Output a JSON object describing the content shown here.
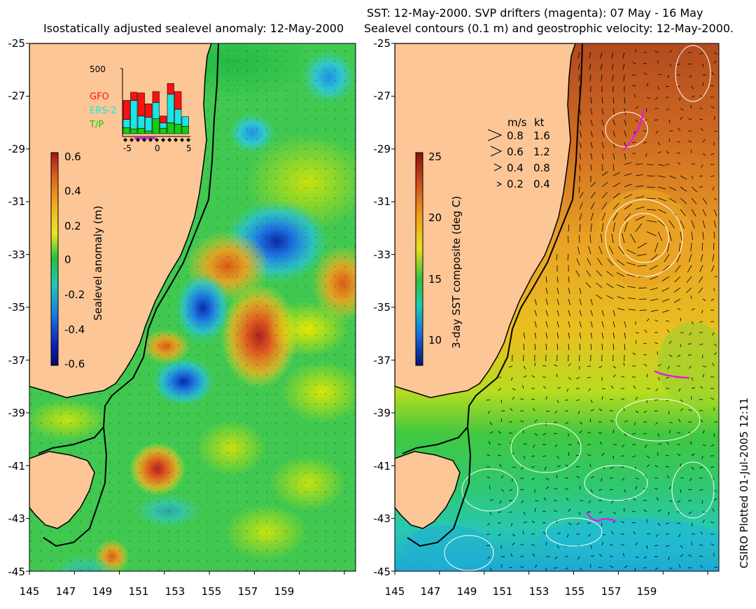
{
  "left_panel": {
    "title": "Isostatically adjusted sealevel anomaly: 12-May-2000",
    "colorbar": {
      "label": "Sealevel anomaly (m)",
      "ticks": [
        "0.6",
        "0.4",
        "0.2",
        "0",
        "-0.2",
        "-0.4",
        "-0.6"
      ],
      "range": [
        -0.6,
        0.6
      ]
    },
    "inset": {
      "ymax_label": "500",
      "legend": [
        {
          "name": "GFO",
          "color": "#ff1010"
        },
        {
          "name": "ERS-2",
          "color": "#19e6e6"
        },
        {
          "name": "T/P",
          "color": "#10d010"
        }
      ],
      "xticks": [
        "-5",
        "0",
        "5"
      ],
      "bars": [
        {
          "tp": 45,
          "ers": 60,
          "gfo": 140
        },
        {
          "tp": 35,
          "ers": 210,
          "gfo": 60
        },
        {
          "tp": 40,
          "ers": 90,
          "gfo": 170
        },
        {
          "tp": 20,
          "ers": 100,
          "gfo": 100
        },
        {
          "tp": 110,
          "ers": 120,
          "gfo": 80
        },
        {
          "tp": 40,
          "ers": 40,
          "gfo": 50
        },
        {
          "tp": 80,
          "ers": 210,
          "gfo": 80
        },
        {
          "tp": 70,
          "ers": 110,
          "gfo": 130
        },
        {
          "tp": 55,
          "ers": 70,
          "gfo": 0
        }
      ]
    },
    "lat_labels": [
      "-25",
      "-27",
      "-29",
      "-31",
      "-33",
      "-35",
      "-37",
      "-39",
      "-41",
      "-43",
      "-45"
    ],
    "lon_labels": [
      "145",
      "147",
      "149",
      "151",
      "153",
      "155",
      "157",
      "159"
    ]
  },
  "right_panel": {
    "title_line1": "SST: 12-May-2000. SVP drifters (magenta): 07 May - 16 May",
    "title_line2": "Sealevel contours (0.1 m) and geostrophic velocity: 12-May-2000.",
    "colorbar": {
      "label": "3-day SST composite (deg C)",
      "ticks": [
        "25",
        "20",
        "15",
        "10"
      ],
      "range": [
        8,
        25
      ]
    },
    "velocity_key": {
      "headers": [
        "m/s",
        "kt"
      ],
      "rows": [
        {
          "ms": "0.8",
          "kt": "1.6"
        },
        {
          "ms": "0.6",
          "kt": "1.2"
        },
        {
          "ms": "0.4",
          "kt": "0.8"
        },
        {
          "ms": "0.2",
          "kt": "0.4"
        }
      ]
    },
    "lat_labels": [
      "-25",
      "-27",
      "-29",
      "-31",
      "-33",
      "-35",
      "-37",
      "-39",
      "-41",
      "-43",
      "-45"
    ],
    "lon_labels": [
      "145",
      "147",
      "149",
      "151",
      "153",
      "155",
      "157",
      "159"
    ]
  },
  "credit": "CSIRO Plotted 01-Jul-2005 12:11",
  "colors": {
    "land": "#fcc696",
    "coast": "#000000",
    "contour": "#ffffff",
    "drifter": "#e020e0"
  }
}
